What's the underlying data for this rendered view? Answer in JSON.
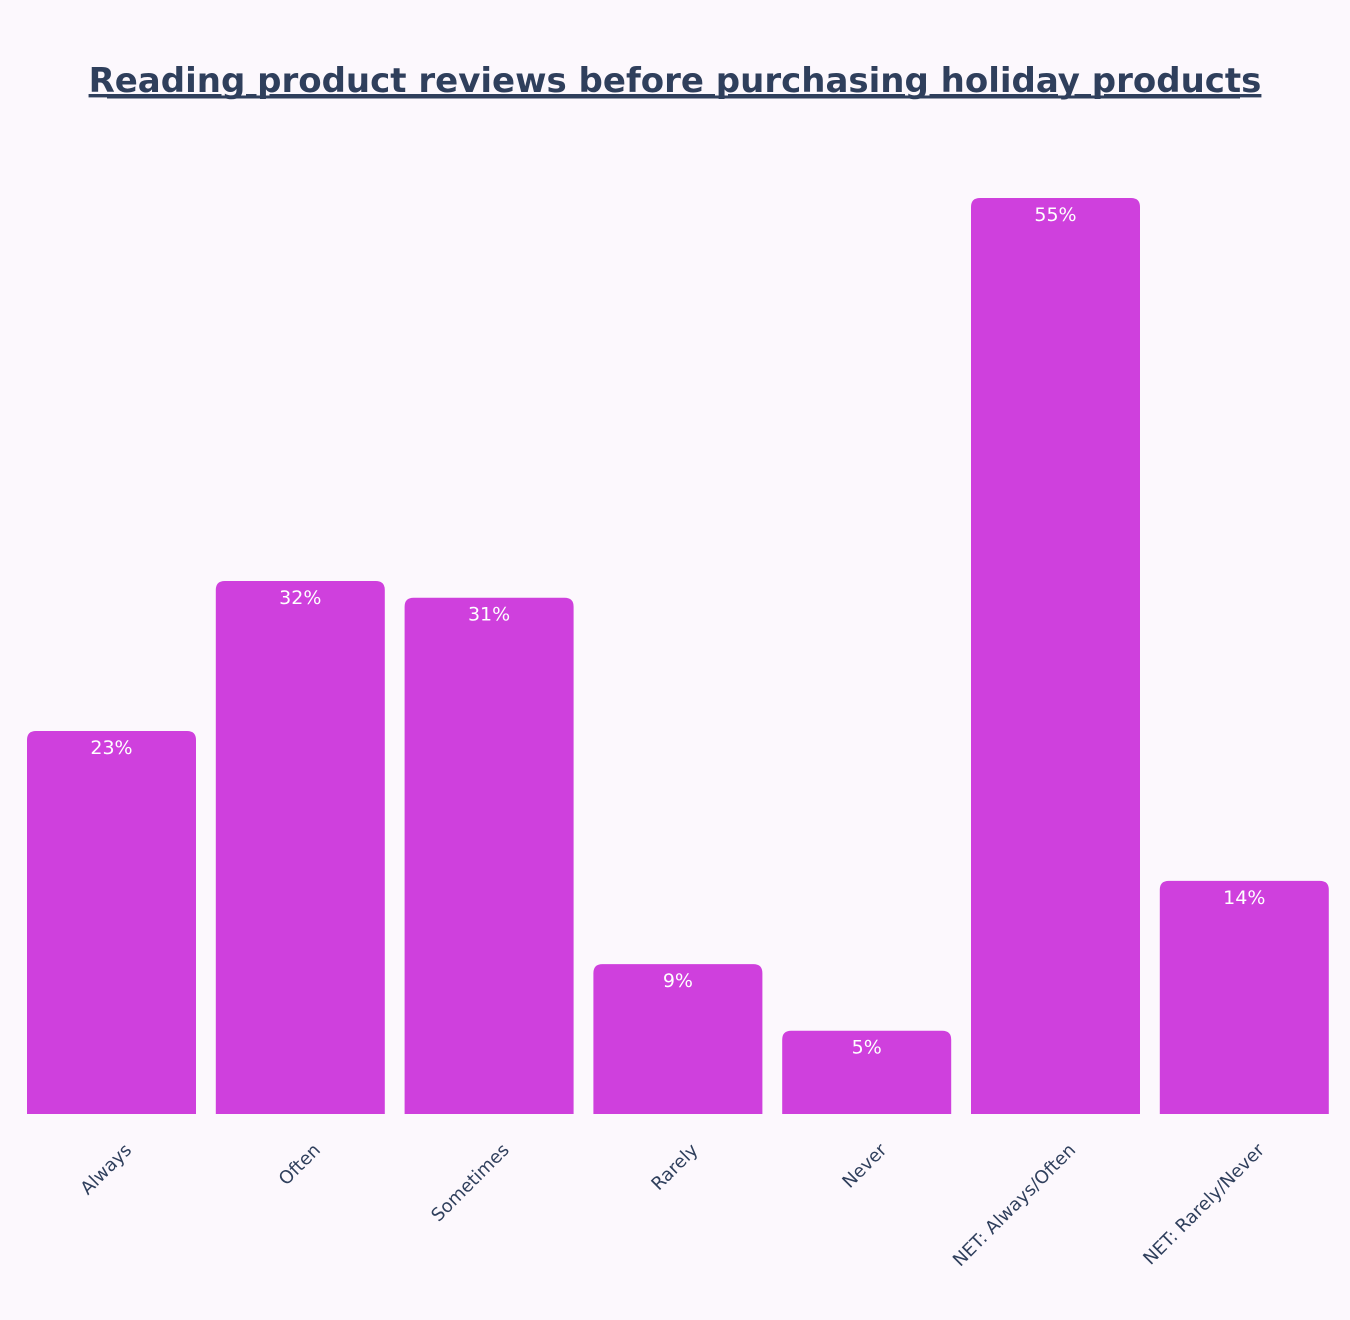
{
  "chart_data": {
    "type": "bar",
    "title": "Reading product reviews before purchasing holiday products",
    "categories": [
      "Always",
      "Often",
      "Sometimes",
      "Rarely",
      "Never",
      "NET: Always/Often",
      "NET: Rarely/Never"
    ],
    "values": [
      23,
      32,
      31,
      9,
      5,
      55,
      14
    ],
    "data_labels": [
      "23%",
      "32%",
      "31%",
      "9%",
      "5%",
      "55%",
      "14%"
    ],
    "ylim": [
      0,
      60
    ],
    "grid": false,
    "legend": "none",
    "bar_color": "#cf40dd"
  }
}
